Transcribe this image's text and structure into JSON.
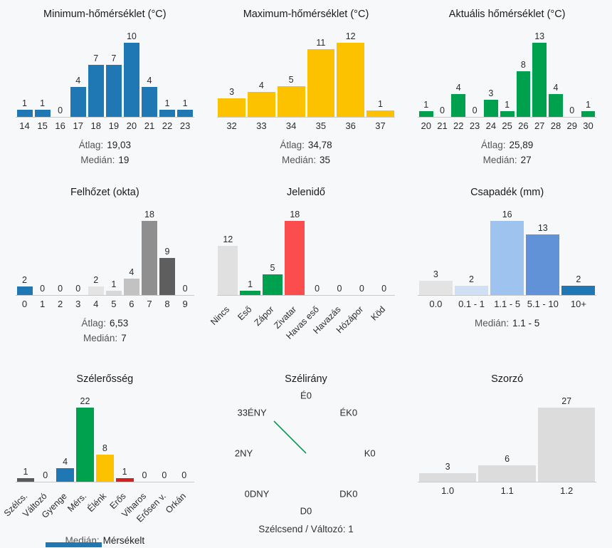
{
  "chart_data": [
    {
      "type": "bar",
      "title": "Minimum-hőmérséklet (°C)",
      "categories": [
        "14",
        "15",
        "16",
        "17",
        "18",
        "19",
        "20",
        "21",
        "22",
        "23"
      ],
      "values": [
        1,
        1,
        0,
        4,
        7,
        7,
        10,
        4,
        1,
        1
      ],
      "color": "#1f77b4",
      "rotate_labels": false,
      "stats": [
        {
          "label": "Átlag:",
          "value": "19,03"
        },
        {
          "label": "Medián:",
          "value": "19"
        }
      ]
    },
    {
      "type": "bar",
      "title": "Maximum-hőmérséklet (°C)",
      "categories": [
        "32",
        "33",
        "34",
        "35",
        "36",
        "37"
      ],
      "values": [
        3,
        4,
        5,
        11,
        12,
        1
      ],
      "color": "#fcc200",
      "rotate_labels": false,
      "stats": [
        {
          "label": "Átlag:",
          "value": "34,78"
        },
        {
          "label": "Medián:",
          "value": "35"
        }
      ]
    },
    {
      "type": "bar",
      "title": "Aktuális hőmérséklet (°C)",
      "categories": [
        "20",
        "21",
        "22",
        "23",
        "24",
        "25",
        "26",
        "27",
        "28",
        "29",
        "30"
      ],
      "values": [
        1,
        0,
        4,
        0,
        3,
        1,
        8,
        13,
        4,
        0,
        1
      ],
      "color": "#00a14e",
      "rotate_labels": false,
      "stats": [
        {
          "label": "Átlag:",
          "value": "25,89"
        },
        {
          "label": "Medián:",
          "value": "27"
        }
      ]
    },
    {
      "type": "bar",
      "title": "Felhőzet (okta)",
      "categories": [
        "0",
        "1",
        "2",
        "3",
        "4",
        "5",
        "6",
        "7",
        "8",
        "9"
      ],
      "values": [
        2,
        0,
        0,
        0,
        2,
        1,
        4,
        18,
        9,
        0
      ],
      "colors": [
        "#1f77b4",
        "#f0f0f0",
        "#ececec",
        "#e8e8e8",
        "#e4e4e4",
        "#d8d8d8",
        "#c2c2c2",
        "#8f8f8f",
        "#5e5e5e",
        "#404040"
      ],
      "rotate_labels": false,
      "stats": [
        {
          "label": "Átlag:",
          "value": "6,53"
        },
        {
          "label": "Medián:",
          "value": "7"
        }
      ]
    },
    {
      "type": "bar",
      "title": "Jelenidő",
      "categories": [
        "Nincs",
        "Eső",
        "Zápor",
        "Zivatar",
        "Havas eső",
        "Havazás",
        "Hózápor",
        "Köd"
      ],
      "values": [
        12,
        1,
        5,
        18,
        0,
        0,
        0,
        0
      ],
      "colors": [
        "#e0e0e0",
        "#00a14e",
        "#00a14e",
        "#fb4d4d",
        "#e0e0e0",
        "#e0e0e0",
        "#e0e0e0",
        "#e0e0e0"
      ],
      "rotate_labels": true,
      "stats": []
    },
    {
      "type": "bar",
      "title": "Csapadék (mm)",
      "categories": [
        "0.0",
        "0.1 - 1",
        "1.1 - 5",
        "5.1 - 10",
        "10+"
      ],
      "values": [
        3,
        2,
        16,
        13,
        2
      ],
      "colors": [
        "#e3e3e3",
        "#cfe0f5",
        "#9ec3ee",
        "#6191d6",
        "#1f77b4"
      ],
      "rotate_labels": false,
      "stats": [
        {
          "label": "Medián:",
          "value": "1.1 - 5"
        }
      ]
    },
    {
      "type": "bar",
      "title": "Szélerősség",
      "categories": [
        "Szélcs.",
        "Változó",
        "Gyenge",
        "Mérs.",
        "Élénk",
        "Erős",
        "Viharos",
        "Erősen v.",
        "Orkán"
      ],
      "values": [
        1,
        0,
        4,
        22,
        8,
        1,
        0,
        0,
        0
      ],
      "colors": [
        "#5a5a5a",
        "#e0e0e0",
        "#1f77b4",
        "#00a14e",
        "#fcc200",
        "#d62020",
        "#e0e0e0",
        "#e0e0e0",
        "#e0e0e0"
      ],
      "rotate_labels": true,
      "stats": [
        {
          "label": "Medián:",
          "value": "Mérsékelt"
        }
      ]
    },
    {
      "type": "wind-rose",
      "title": "Szélirány",
      "directions": [
        {
          "dir": "É",
          "count": 0,
          "display": "É0",
          "pos": "n"
        },
        {
          "dir": "ÉK",
          "count": 0,
          "display": "ÉK0",
          "pos": "ne"
        },
        {
          "dir": "K",
          "count": 0,
          "display": "K0",
          "pos": "e"
        },
        {
          "dir": "DK",
          "count": 0,
          "display": "DK0",
          "pos": "se"
        },
        {
          "dir": "D",
          "count": 0,
          "display": "D0",
          "pos": "s"
        },
        {
          "dir": "DNY",
          "count": 0,
          "display": "0DNY",
          "pos": "sw"
        },
        {
          "dir": "NY",
          "count": 2,
          "display": "2NY",
          "pos": "w"
        },
        {
          "dir": "ÉNY",
          "count": 33,
          "display": "33ÉNY",
          "pos": "nw"
        }
      ],
      "needle": {
        "pos": "nw",
        "direction": "ÉNY",
        "color": "#00a14e"
      },
      "footer": "Szélcsend / Változó: 1"
    },
    {
      "type": "bar",
      "title": "Szorzó",
      "categories": [
        "1.0",
        "1.1",
        "1.2"
      ],
      "values": [
        3,
        6,
        27
      ],
      "color": "#dcdcdc",
      "rotate_labels": false,
      "stats": []
    }
  ]
}
